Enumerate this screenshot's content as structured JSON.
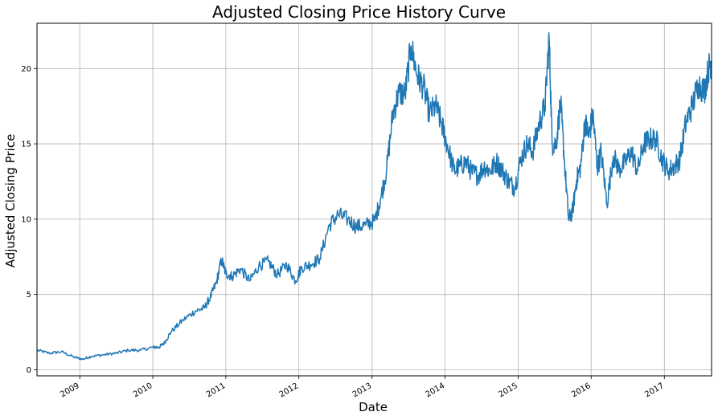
{
  "chart_data": {
    "type": "line",
    "title": "Adjusted Closing Price History Curve",
    "xlabel": "Date",
    "ylabel": "Adjusted Closing Price",
    "xlim": [
      "2008-06-01",
      "2017-08-25"
    ],
    "ylim": [
      -0.4,
      23.0
    ],
    "x_ticks": [
      "2009",
      "2010",
      "2011",
      "2012",
      "2013",
      "2014",
      "2015",
      "2016",
      "2017"
    ],
    "y_ticks": [
      0,
      5,
      10,
      15,
      20
    ],
    "grid": true,
    "line_color": "#1f77b4",
    "series": [
      {
        "x": [
          "2008-06-01",
          "2008-08-01",
          "2008-10-01",
          "2008-12-01",
          "2009-01-15",
          "2009-03-01",
          "2009-05-01",
          "2009-07-01",
          "2009-09-01",
          "2009-11-01",
          "2010-01-01",
          "2010-02-01",
          "2010-03-01",
          "2010-04-01",
          "2010-06-01",
          "2010-08-01",
          "2010-09-15",
          "2010-10-15",
          "2010-11-15",
          "2010-12-10",
          "2011-01-01",
          "2011-02-01",
          "2011-03-15",
          "2011-05-01",
          "2011-06-15",
          "2011-08-01",
          "2011-09-15",
          "2011-11-01",
          "2011-12-15",
          "2012-01-15",
          "2012-03-01",
          "2012-04-15",
          "2012-06-01",
          "2012-07-15",
          "2012-09-01",
          "2012-10-15",
          "2012-12-01",
          "2013-01-15",
          "2013-02-15",
          "2013-03-15",
          "2013-04-15",
          "2013-05-15",
          "2013-06-15",
          "2013-07-15",
          "2013-08-15",
          "2013-09-15",
          "2013-10-15",
          "2013-11-15",
          "2013-12-15",
          "2014-01-10",
          "2014-02-15",
          "2014-03-15",
          "2014-04-15",
          "2014-05-15",
          "2014-06-15",
          "2014-07-15",
          "2014-08-15",
          "2014-09-15",
          "2014-10-15",
          "2014-11-15",
          "2014-12-15",
          "2015-01-15",
          "2015-02-15",
          "2015-03-15",
          "2015-04-15",
          "2015-05-15",
          "2015-06-05",
          "2015-06-20",
          "2015-07-10",
          "2015-08-01",
          "2015-08-20",
          "2015-09-10",
          "2015-09-30",
          "2015-10-20",
          "2015-11-10",
          "2015-12-01",
          "2015-12-20",
          "2016-01-10",
          "2016-02-01",
          "2016-02-20",
          "2016-03-20",
          "2016-04-20",
          "2016-05-20",
          "2016-06-20",
          "2016-07-20",
          "2016-08-20",
          "2016-09-20",
          "2016-10-20",
          "2016-11-20",
          "2016-12-20",
          "2017-01-20",
          "2017-02-20",
          "2017-03-20",
          "2017-04-20",
          "2017-05-20",
          "2017-06-20",
          "2017-07-20",
          "2017-08-10",
          "2017-08-25"
        ],
        "y": [
          1.3,
          1.1,
          1.2,
          0.85,
          0.7,
          0.9,
          1.0,
          1.1,
          1.3,
          1.3,
          1.5,
          1.5,
          1.8,
          2.5,
          3.3,
          3.9,
          4.1,
          4.8,
          5.8,
          7.3,
          6.4,
          6.2,
          6.7,
          5.9,
          6.9,
          7.2,
          6.3,
          7.0,
          5.9,
          6.8,
          7.0,
          7.4,
          9.6,
          10.3,
          10.0,
          9.5,
          9.6,
          9.9,
          11.5,
          13.3,
          17.0,
          18.4,
          18.3,
          21.5,
          19.5,
          18.8,
          17.0,
          17.5,
          16.3,
          15.0,
          13.2,
          13.5,
          13.8,
          13.1,
          12.9,
          13.5,
          13.2,
          13.8,
          13.2,
          12.5,
          12.1,
          14.0,
          15.0,
          14.5,
          16.3,
          17.5,
          22.0,
          15.0,
          15.0,
          17.8,
          14.0,
          10.0,
          10.5,
          12.6,
          13.5,
          16.5,
          15.5,
          17.0,
          13.4,
          14.5,
          11.0,
          14.2,
          13.3,
          13.8,
          14.5,
          13.2,
          15.0,
          15.3,
          15.3,
          14.0,
          13.2,
          13.5,
          14.0,
          16.5,
          17.5,
          19.0,
          18.5,
          20.0,
          20.5
        ]
      }
    ]
  }
}
